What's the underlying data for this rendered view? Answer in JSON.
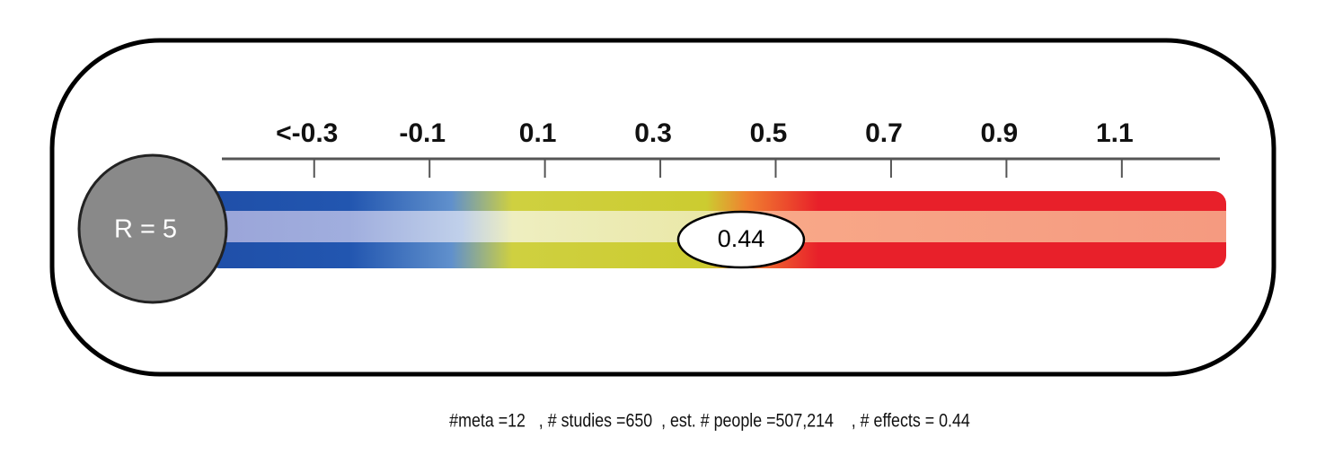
{
  "chart_data": {
    "type": "gauge",
    "xlim": [
      -0.46,
      1.27
    ],
    "xticks": [
      {
        "value": -0.3,
        "label": "<-0.3"
      },
      -0.1,
      0.1,
      0.3,
      0.5,
      0.7,
      0.9,
      1.1
    ],
    "badge": "R = 5",
    "value": 0.44,
    "footer": "#meta =12   , # studies =650  , est. # people =507,214    , # effects = 0.44"
  }
}
